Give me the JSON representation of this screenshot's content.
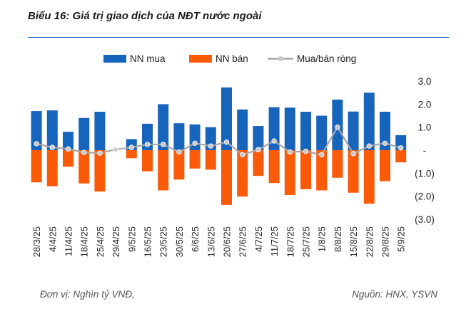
{
  "title": "Biểu 16: Giá trị giao dịch của NĐT nước ngoài",
  "footer": {
    "unit": "Đơn vị: Nghìn tỷ VNĐ,",
    "source": "Nguồn: HNX, YSVN"
  },
  "colors": {
    "buy": "#1764bd",
    "sell": "#fb5b09",
    "net_line": "#a6a6a6",
    "net_marker": "#c9c9c9",
    "title_rule": "#1565c0"
  },
  "chart_data": {
    "type": "bar",
    "categories": [
      "28/3/25",
      "4/4/25",
      "11/4/25",
      "18/4/25",
      "25/4/25",
      "29/4/25",
      "9/5/25",
      "16/5/25",
      "23/5/25",
      "30/5/25",
      "6/6/25",
      "13/6/25",
      "20/6/25",
      "27/6/25",
      "4/7/25",
      "11/7/25",
      "18/7/25",
      "25/7/25",
      "1/8/25",
      "8/8/25",
      "15/8/25",
      "22/8/25",
      "29/8/25",
      "5/9/25"
    ],
    "series": [
      {
        "name": "NN mua",
        "kind": "bar",
        "values": [
          1.7,
          1.73,
          0.8,
          1.4,
          1.67,
          0.0,
          0.48,
          1.15,
          2.0,
          1.17,
          1.12,
          1.0,
          2.73,
          1.77,
          1.05,
          1.87,
          1.85,
          1.67,
          1.5,
          2.2,
          1.68,
          2.5,
          1.67,
          0.65
        ]
      },
      {
        "name": "NN bán",
        "kind": "bar",
        "values": [
          -1.4,
          -1.57,
          -0.72,
          -1.45,
          -1.8,
          0.0,
          -0.35,
          -0.92,
          -1.75,
          -1.28,
          -0.8,
          -0.85,
          -2.38,
          -2.02,
          -1.12,
          -1.43,
          -1.95,
          -1.7,
          -1.75,
          -1.2,
          -1.85,
          -2.33,
          -1.35,
          -0.53
        ]
      },
      {
        "name": "Mua/bán ròng",
        "kind": "line",
        "values": [
          0.28,
          0.12,
          0.05,
          -0.1,
          -0.13,
          0.03,
          0.12,
          0.25,
          0.25,
          -0.08,
          0.3,
          0.18,
          0.35,
          -0.2,
          0.02,
          0.4,
          -0.08,
          -0.05,
          -0.2,
          1.0,
          -0.15,
          0.18,
          0.3,
          0.1
        ]
      }
    ],
    "y_ticks": [
      "3.0",
      "2.0",
      "1.0",
      "-",
      "(1.0)",
      "(2.0)",
      "(3.0)"
    ],
    "ylim": [
      -3,
      3
    ],
    "grid": false,
    "legend_position": "top"
  }
}
